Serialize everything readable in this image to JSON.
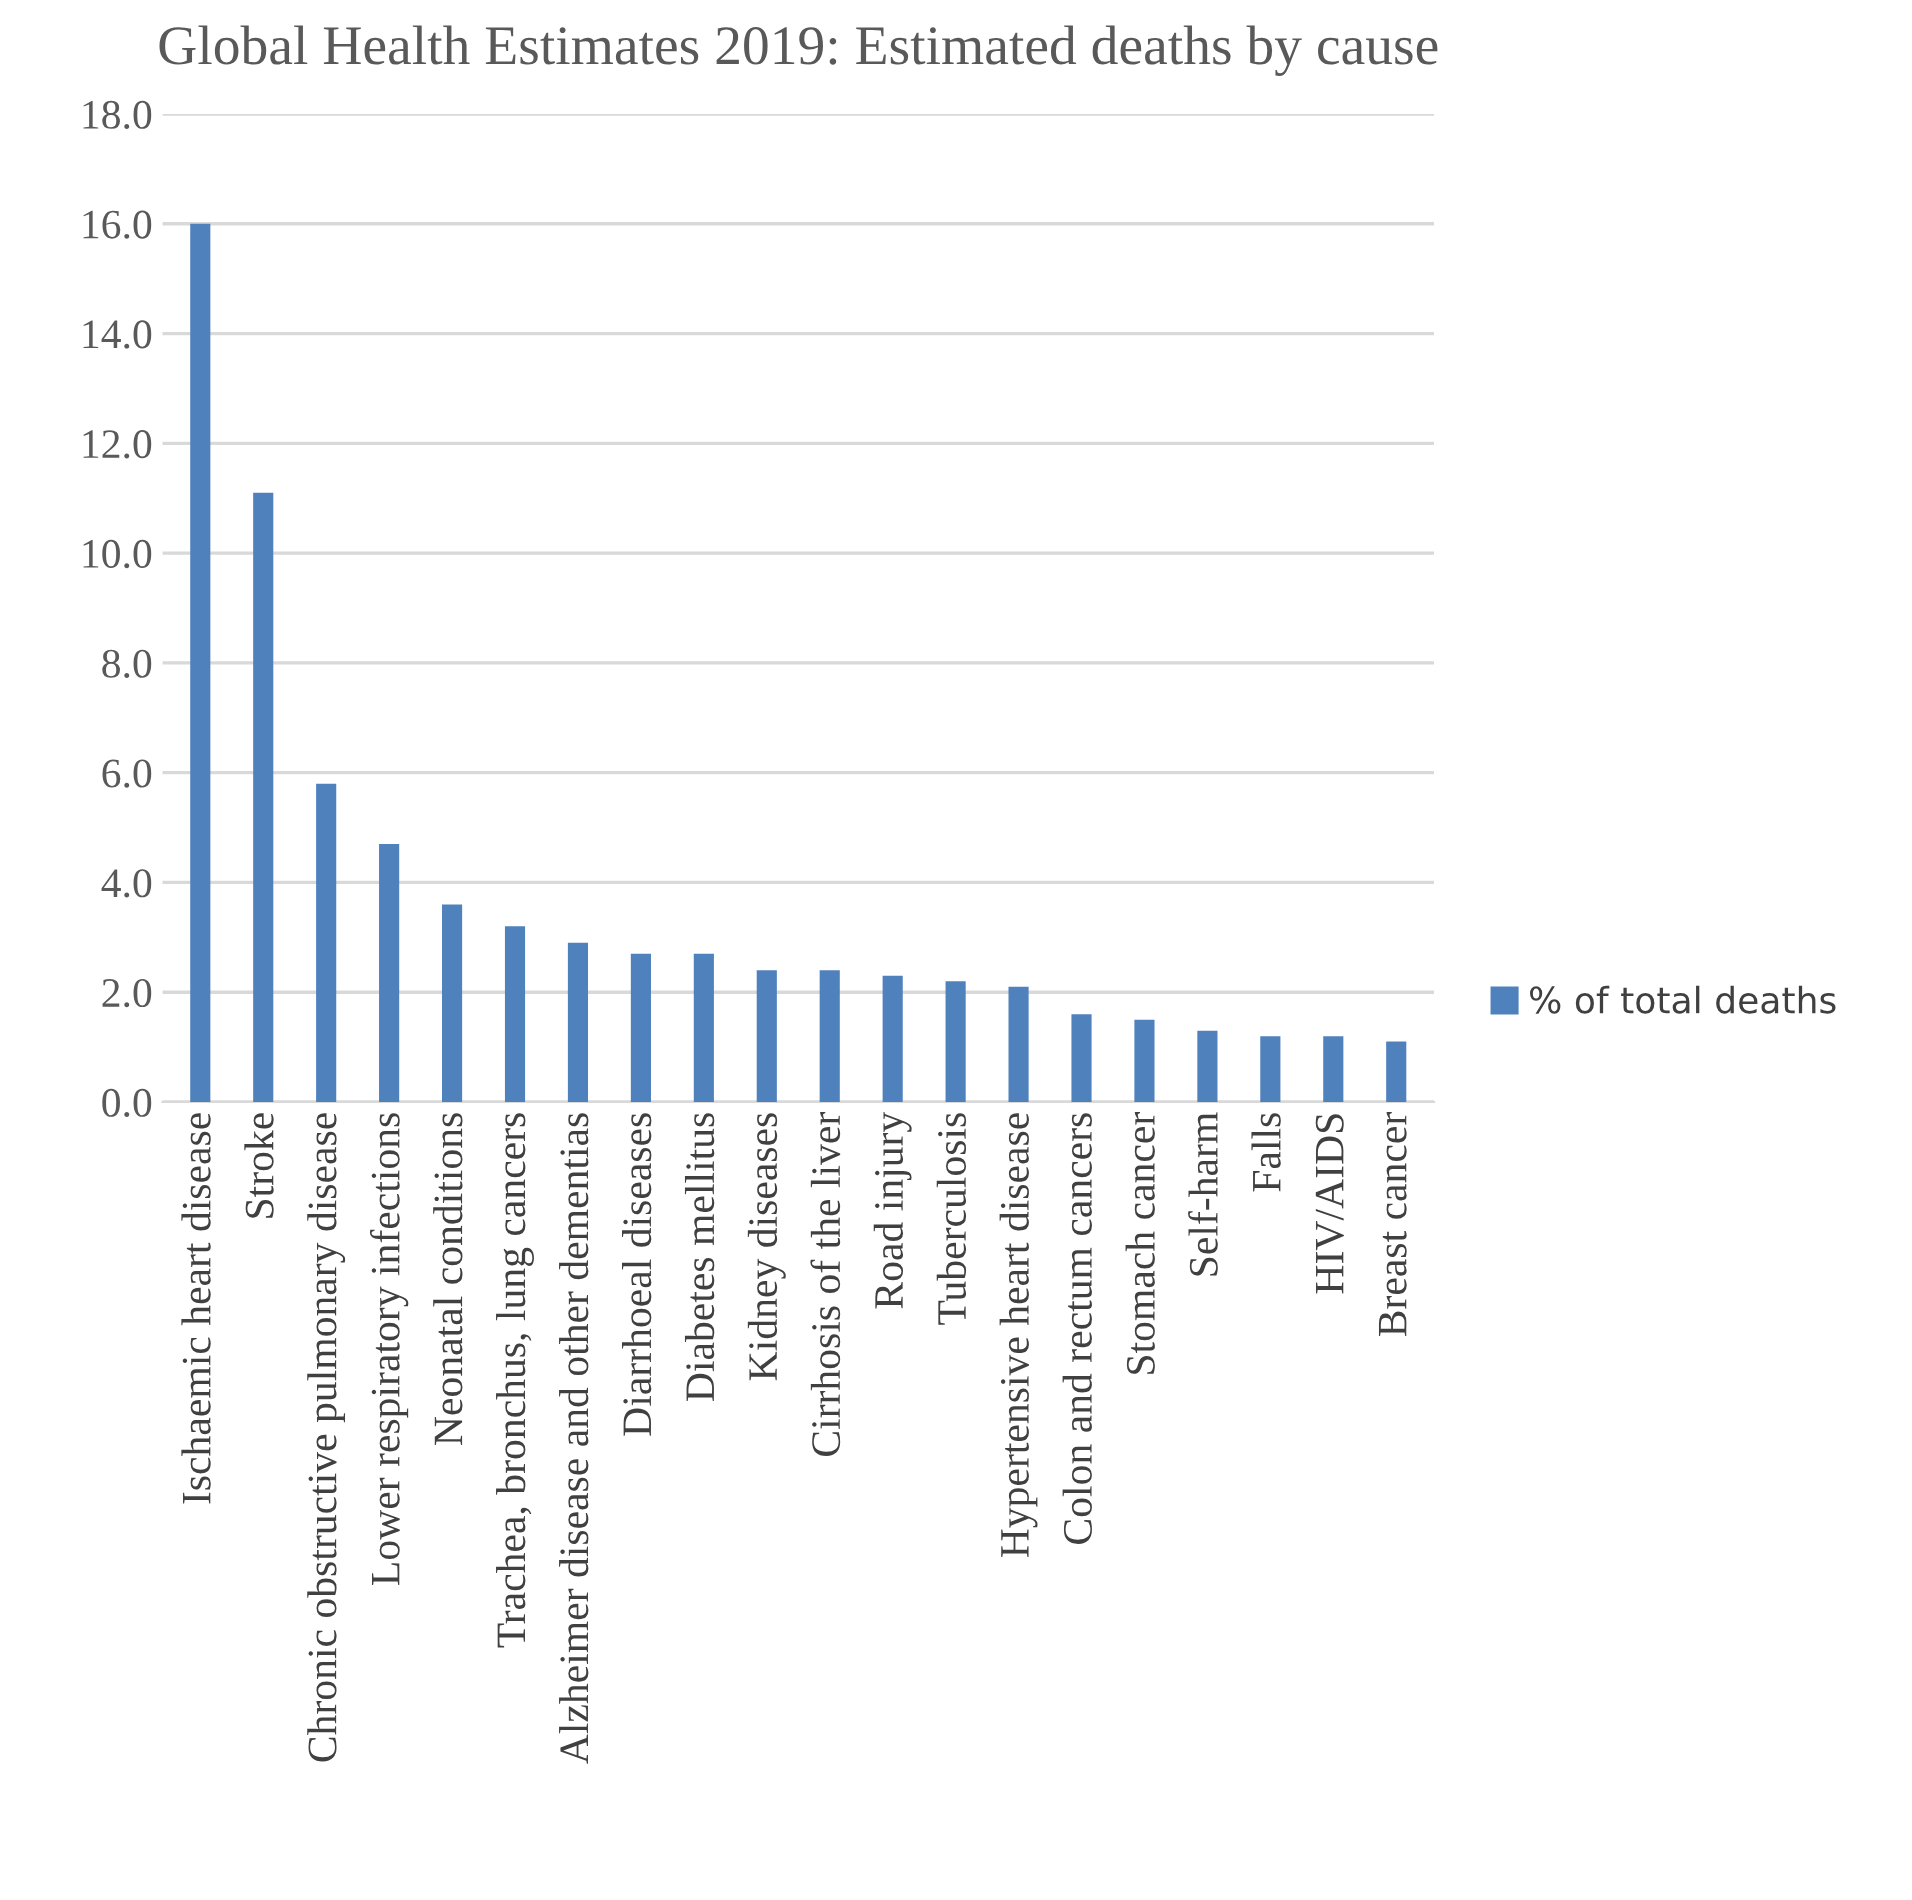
{
  "chart_data": {
    "type": "bar",
    "title": "Global Health Estimates 2019: Estimated deaths by cause",
    "categories": [
      "Ischaemic heart disease",
      "Stroke",
      "Chronic obstructive pulmonary disease",
      "Lower respiratory infections",
      "Neonatal conditions",
      "Trachea, bronchus, lung cancers",
      "Alzheimer disease and other dementias",
      "Diarrhoeal diseases",
      "Diabetes mellitus",
      "Kidney diseases",
      "Cirrhosis of the liver",
      "Road injury",
      "Tuberculosis",
      "Hypertensive heart disease",
      "Colon and rectum cancers",
      "Stomach cancer",
      "Self-harm",
      "Falls",
      "HIV/AIDS",
      "Breast cancer"
    ],
    "series": [
      {
        "name": "% of total deaths",
        "color": "#4f81bd",
        "values": [
          16.0,
          11.1,
          5.8,
          4.7,
          3.6,
          3.2,
          2.9,
          2.7,
          2.7,
          2.4,
          2.4,
          2.3,
          2.2,
          2.1,
          1.6,
          1.5,
          1.3,
          1.2,
          1.2,
          1.1
        ]
      }
    ],
    "ylim": [
      0,
      18
    ],
    "yticks": [
      {
        "value": 0,
        "label": "0.0"
      },
      {
        "value": 2,
        "label": "2.0"
      },
      {
        "value": 4,
        "label": "4.0"
      },
      {
        "value": 6,
        "label": "6.0"
      },
      {
        "value": 8,
        "label": "8.0"
      },
      {
        "value": 10,
        "label": "10.0"
      },
      {
        "value": 12,
        "label": "12.0"
      },
      {
        "value": 14,
        "label": "14.0"
      },
      {
        "value": 16,
        "label": "16.0"
      },
      {
        "value": 18,
        "label": "18.0"
      }
    ],
    "grid": "y",
    "legend": "right"
  }
}
